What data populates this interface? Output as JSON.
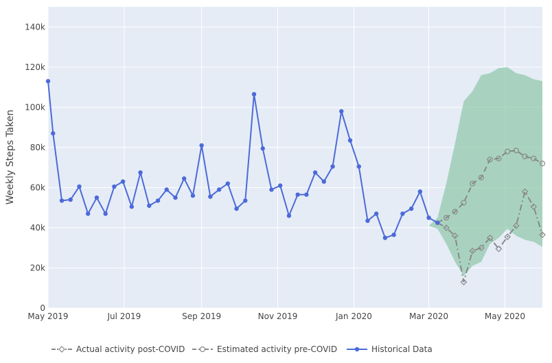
{
  "chart_data": {
    "type": "line",
    "title": "",
    "xlabel": "",
    "ylabel": "Weekly Steps Taken",
    "xlim": [
      "2019-05-01",
      "2020-05-31"
    ],
    "ylim": [
      0,
      150000
    ],
    "grid": true,
    "legend_position": "bottom",
    "x_ticks": [
      {
        "date": "2019-05-01",
        "label": "May 2019"
      },
      {
        "date": "2019-07-01",
        "label": "Jul 2019"
      },
      {
        "date": "2019-09-01",
        "label": "Sep 2019"
      },
      {
        "date": "2019-11-01",
        "label": "Nov 2019"
      },
      {
        "date": "2020-01-01",
        "label": "Jan 2020"
      },
      {
        "date": "2020-03-01",
        "label": "Mar 2020"
      },
      {
        "date": "2020-05-01",
        "label": "May 2020"
      }
    ],
    "y_ticks": [
      {
        "value": 0,
        "label": "0"
      },
      {
        "value": 20000,
        "label": "20k"
      },
      {
        "value": 40000,
        "label": "40k"
      },
      {
        "value": 60000,
        "label": "60k"
      },
      {
        "value": 80000,
        "label": "80k"
      },
      {
        "value": 100000,
        "label": "100k"
      },
      {
        "value": 120000,
        "label": "120k"
      },
      {
        "value": 140000,
        "label": "140k"
      }
    ],
    "series": [
      {
        "name": "Historical Data",
        "color": "#4c6ad8",
        "style": "solid-line-circle-markers",
        "x": [
          "2019-05-01",
          "2019-05-05",
          "2019-05-12",
          "2019-05-19",
          "2019-05-26",
          "2019-06-02",
          "2019-06-09",
          "2019-06-16",
          "2019-06-23",
          "2019-06-30",
          "2019-07-07",
          "2019-07-14",
          "2019-07-21",
          "2019-07-28",
          "2019-08-04",
          "2019-08-11",
          "2019-08-18",
          "2019-08-25",
          "2019-09-01",
          "2019-09-08",
          "2019-09-15",
          "2019-09-22",
          "2019-09-29",
          "2019-10-06",
          "2019-10-13",
          "2019-10-20",
          "2019-10-27",
          "2019-11-03",
          "2019-11-10",
          "2019-11-17",
          "2019-11-24",
          "2019-12-01",
          "2019-12-08",
          "2019-12-15",
          "2019-12-22",
          "2019-12-29",
          "2020-01-05",
          "2020-01-12",
          "2020-01-19",
          "2020-01-26",
          "2020-02-02",
          "2020-02-09",
          "2020-02-16",
          "2020-02-23",
          "2020-03-01",
          "2020-03-08"
        ],
        "y": [
          113000,
          87000,
          53500,
          54000,
          60500,
          47000,
          55000,
          47000,
          60500,
          63000,
          50500,
          67500,
          51000,
          53500,
          59000,
          55000,
          64500,
          56000,
          81000,
          55500,
          59000,
          62000,
          49500,
          53500,
          106500,
          79500,
          59000,
          61000,
          46000,
          56500,
          56500,
          67500,
          63000,
          70500,
          98000,
          83500,
          70500,
          43500,
          47000,
          35000,
          36500,
          47000,
          49500,
          58000,
          45000,
          42500
        ]
      },
      {
        "name": "Estimated activity pre-COVID",
        "color": "#888888",
        "style": "dashed-line-open-circle-markers",
        "x": [
          "2020-03-08",
          "2020-03-15",
          "2020-03-22",
          "2020-03-29",
          "2020-04-05",
          "2020-04-12",
          "2020-04-19",
          "2020-04-26",
          "2020-05-03",
          "2020-05-10",
          "2020-05-17",
          "2020-05-24",
          "2020-05-31"
        ],
        "y": [
          42500,
          45000,
          48000,
          52500,
          62000,
          65000,
          74000,
          74500,
          78000,
          78500,
          75500,
          74500,
          72000
        ]
      },
      {
        "name": "Actual activity post-COVID",
        "color": "#888888",
        "style": "dashdot-line-open-diamond-markers",
        "x": [
          "2020-03-08",
          "2020-03-15",
          "2020-03-22",
          "2020-03-29",
          "2020-04-05",
          "2020-04-12",
          "2020-04-19",
          "2020-04-26",
          "2020-05-03",
          "2020-05-10",
          "2020-05-17",
          "2020-05-24",
          "2020-05-31"
        ],
        "y": [
          42500,
          40000,
          36000,
          13000,
          28500,
          30000,
          35000,
          29500,
          35500,
          41000,
          58000,
          50500,
          36500
        ]
      }
    ],
    "bands": [
      {
        "color": "#8fc7a8",
        "x": [
          "2020-03-01",
          "2020-03-08",
          "2020-03-15",
          "2020-03-22",
          "2020-03-29",
          "2020-04-05",
          "2020-04-12",
          "2020-04-19",
          "2020-04-26",
          "2020-05-03",
          "2020-05-10",
          "2020-05-17",
          "2020-05-24",
          "2020-05-31"
        ],
        "upper": [
          41000,
          45000,
          62000,
          82000,
          103000,
          108000,
          116000,
          117000,
          119500,
          120000,
          117000,
          116000,
          114000,
          113000
        ],
        "lower": [
          41000,
          39500,
          32000,
          23000,
          16000,
          21000,
          23000,
          32000,
          35000,
          39500,
          36000,
          34000,
          33000,
          30500
        ]
      }
    ],
    "legend": [
      {
        "name": "Actual activity post-COVID",
        "marker": "diamond"
      },
      {
        "name": "Estimated activity pre-COVID",
        "marker": "circle-open"
      },
      {
        "name": "Historical Data",
        "marker": "circle"
      }
    ]
  }
}
